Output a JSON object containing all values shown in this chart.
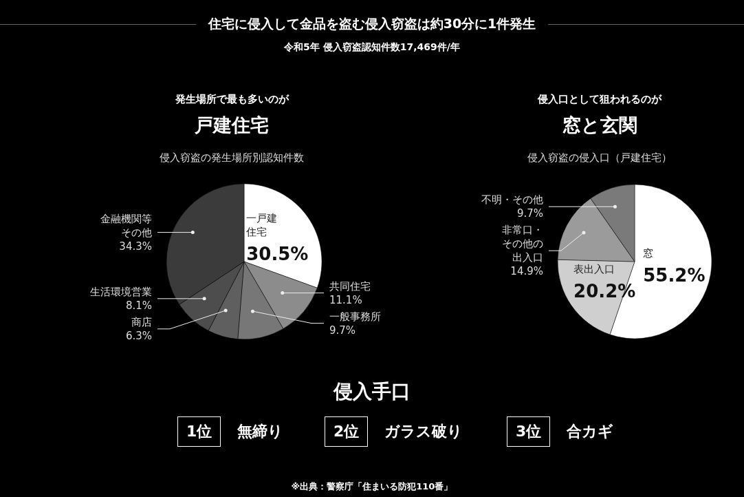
{
  "chart_data": [
    {
      "type": "other",
      "title": "住宅に侵入して金品を盗む侵入窃盗は約30分に1件発生",
      "subtitle": "令和5年 侵入窃盗認知件数17,469件/年"
    },
    {
      "type": "pie",
      "annotations": [
        "発生場所で最も多いのが"
      ],
      "title": "戸建住宅",
      "subtitle": "侵入窃盗の発生場所別認知件数",
      "categories": [
        "一戸建住宅",
        "共同住宅",
        "一般事務所",
        "商店",
        "生活環境営業",
        "金融機関等その他"
      ],
      "values": [
        30.5,
        11.1,
        9.7,
        6.3,
        8.1,
        34.3
      ],
      "colors": [
        "#ffffff",
        "#8c8c8c",
        "#777777",
        "#5f5f5f",
        "#4d4d4d",
        "#3b3b3b"
      ],
      "value_labels": [
        "30.5%",
        "11.1%",
        "9.7%",
        "6.3%",
        "8.1%",
        "34.3%"
      ]
    },
    {
      "type": "pie",
      "annotations": [
        "侵入口として狙われるのが"
      ],
      "title": "窓と玄関",
      "subtitle": "侵入窃盗の侵入口（戸建住宅）",
      "categories": [
        "窓",
        "表出入口",
        "非常口・その他の出入口",
        "不明・その他"
      ],
      "values": [
        55.2,
        20.2,
        14.9,
        9.7
      ],
      "colors": [
        "#ffffff",
        "#cfcfcf",
        "#9b9b9b",
        "#7a7a7a"
      ],
      "value_labels": [
        "55.2%",
        "20.2%",
        "14.9%",
        "9.7%"
      ]
    },
    {
      "type": "other",
      "title": "侵入手口",
      "annotations": [
        "1位",
        "無締り",
        "2位",
        "ガラス破り",
        "3位",
        "合カギ"
      ]
    },
    {
      "type": "other",
      "annotations": [
        "※出典：警察庁「住まいる防犯110番」"
      ]
    }
  ]
}
